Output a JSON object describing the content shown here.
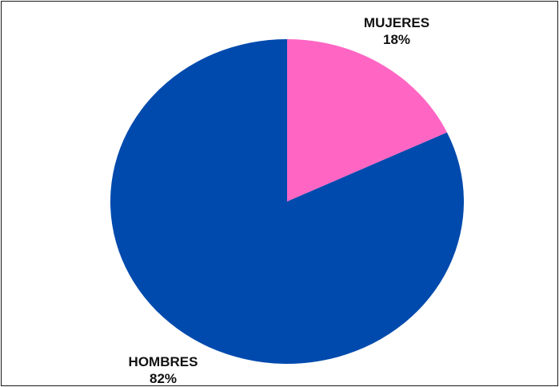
{
  "chart_data": {
    "type": "pie",
    "title": "",
    "slices": [
      {
        "label": "MUJERES",
        "value": 18,
        "display": "18%",
        "color": "#FF66C4"
      },
      {
        "label": "HOMBRES",
        "value": 82,
        "display": "82%",
        "color": "#004AAD"
      }
    ],
    "start_angle_deg": 0,
    "direction": "clockwise",
    "legend": "none"
  }
}
